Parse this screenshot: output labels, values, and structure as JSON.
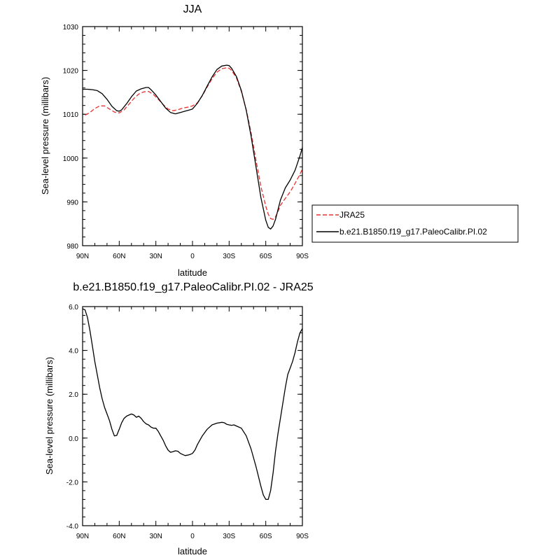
{
  "chart_data": [
    {
      "type": "line",
      "title": "JJA",
      "xlabel": "latitude",
      "ylabel": "Sea-level pressure (millibars)",
      "x_ticks": [
        90,
        60,
        30,
        0,
        -30,
        -60,
        -90
      ],
      "x_tick_labels": [
        "90N",
        "60N",
        "30N",
        "0",
        "30S",
        "60S",
        "90S"
      ],
      "xlim": [
        90,
        -90
      ],
      "y_ticks": [
        980,
        990,
        1000,
        1010,
        1020,
        1030
      ],
      "y_tick_labels": [
        "980",
        "990",
        "1000",
        "1010",
        "1020",
        "1030"
      ],
      "ylim": [
        980,
        1030
      ],
      "legend_position": "right",
      "series": [
        {
          "name": "JRA25",
          "color": "#e8312f",
          "dash": "dashed",
          "x": [
            88,
            84,
            80,
            76,
            72,
            68,
            64,
            60,
            56,
            52,
            48,
            44,
            40,
            36,
            32,
            28,
            24,
            20,
            16,
            12,
            8,
            4,
            0,
            -4,
            -8,
            -12,
            -16,
            -20,
            -24,
            -28,
            -30,
            -32,
            -36,
            -40,
            -44,
            -48,
            -52,
            -56,
            -60,
            -62,
            -64,
            -66,
            -68,
            -70,
            -72,
            -76,
            -80,
            -84,
            -88,
            -90
          ],
          "y": [
            1009.8,
            1010.4,
            1011.3,
            1011.9,
            1011.9,
            1011.2,
            1010.5,
            1010.3,
            1011.0,
            1012.3,
            1013.6,
            1014.6,
            1015.1,
            1015.2,
            1014.5,
            1013.4,
            1012.2,
            1011.2,
            1010.8,
            1011.0,
            1011.4,
            1011.6,
            1011.9,
            1012.6,
            1014.2,
            1016.2,
            1018.1,
            1019.6,
            1020.4,
            1020.6,
            1020.5,
            1020.0,
            1018.3,
            1015.2,
            1011.0,
            1005.8,
            999.5,
            993.5,
            989.0,
            987.2,
            986.2,
            986.0,
            986.6,
            987.8,
            989.2,
            990.8,
            992.3,
            994.2,
            996.3,
            997.5
          ]
        },
        {
          "name": "b.e21.B1850.f19_g17.PaleoCalibr.PI.02",
          "color": "#000000",
          "dash": "solid",
          "x": [
            90,
            86,
            82,
            78,
            74,
            70,
            66,
            62,
            60,
            58,
            54,
            50,
            46,
            42,
            38,
            36,
            34,
            30,
            26,
            22,
            18,
            14,
            10,
            6,
            2,
            0,
            -4,
            -8,
            -12,
            -16,
            -20,
            -24,
            -28,
            -30,
            -32,
            -36,
            -40,
            -44,
            -48,
            -52,
            -56,
            -60,
            -62,
            -64,
            -66,
            -68,
            -70,
            -72,
            -76,
            -80,
            -84,
            -88,
            -90
          ],
          "y": [
            1015.7,
            1015.7,
            1015.6,
            1015.4,
            1014.7,
            1013.4,
            1011.8,
            1010.8,
            1010.7,
            1011.0,
            1012.4,
            1014.0,
            1015.3,
            1015.8,
            1016.1,
            1016.1,
            1015.6,
            1014.4,
            1012.9,
            1011.4,
            1010.4,
            1010.1,
            1010.4,
            1010.7,
            1011.0,
            1011.2,
            1012.5,
            1014.3,
            1016.4,
            1018.5,
            1020.2,
            1021.0,
            1021.2,
            1021.1,
            1020.5,
            1018.6,
            1015.4,
            1010.9,
            1005.0,
            998.0,
            991.0,
            985.8,
            984.2,
            983.8,
            984.5,
            986.0,
            988.2,
            990.4,
            993.2,
            995.0,
            997.2,
            1000.5,
            1002.4
          ]
        }
      ]
    },
    {
      "type": "line",
      "title": "b.e21.B1850.f19_g17.PaleoCalibr.PI.02 - JRA25",
      "xlabel": "latitude",
      "ylabel": "Sea-level pressure (millibars)",
      "x_ticks": [
        90,
        60,
        30,
        0,
        -30,
        -60,
        -90
      ],
      "x_tick_labels": [
        "90N",
        "60N",
        "30N",
        "0",
        "30S",
        "60S",
        "90S"
      ],
      "xlim": [
        90,
        -90
      ],
      "y_ticks": [
        -4,
        -2,
        0,
        2,
        4,
        6
      ],
      "y_tick_labels": [
        "-4.0",
        "-2.0",
        "0.0",
        "2.0",
        "4.0",
        "6.0"
      ],
      "ylim": [
        -4,
        6
      ],
      "series": [
        {
          "color": "#000000",
          "dash": "solid",
          "x": [
            90,
            88,
            86,
            84,
            82,
            80,
            78,
            76,
            74,
            72,
            70,
            68,
            66,
            64,
            62,
            60,
            58,
            56,
            54,
            52,
            50,
            48,
            46,
            44,
            42,
            40,
            38,
            36,
            34,
            32,
            30,
            28,
            26,
            24,
            22,
            20,
            18,
            16,
            14,
            12,
            10,
            8,
            6,
            4,
            2,
            0,
            -2,
            -4,
            -8,
            -12,
            -16,
            -20,
            -24,
            -26,
            -28,
            -30,
            -32,
            -34,
            -36,
            -40,
            -44,
            -48,
            -52,
            -56,
            -58,
            -60,
            -62,
            -64,
            -66,
            -68,
            -70,
            -72,
            -74,
            -76,
            -78,
            -80,
            -82,
            -84,
            -86,
            -88,
            -90
          ],
          "y": [
            5.9,
            5.85,
            5.5,
            4.9,
            4.2,
            3.5,
            2.9,
            2.3,
            1.8,
            1.4,
            1.1,
            0.8,
            0.4,
            0.1,
            0.12,
            0.4,
            0.7,
            0.9,
            1.0,
            1.05,
            1.1,
            1.05,
            0.95,
            1.0,
            0.9,
            0.75,
            0.65,
            0.6,
            0.5,
            0.45,
            0.45,
            0.3,
            0.1,
            -0.1,
            -0.35,
            -0.55,
            -0.65,
            -0.62,
            -0.58,
            -0.6,
            -0.7,
            -0.75,
            -0.8,
            -0.78,
            -0.75,
            -0.7,
            -0.55,
            -0.3,
            0.1,
            0.4,
            0.6,
            0.68,
            0.72,
            0.7,
            0.63,
            0.6,
            0.58,
            0.6,
            0.55,
            0.45,
            0.1,
            -0.5,
            -1.3,
            -2.2,
            -2.6,
            -2.8,
            -2.8,
            -2.4,
            -1.6,
            -0.6,
            0.2,
            0.9,
            1.6,
            2.3,
            2.9,
            3.2,
            3.5,
            3.9,
            4.4,
            4.8,
            5.0
          ]
        }
      ]
    }
  ]
}
